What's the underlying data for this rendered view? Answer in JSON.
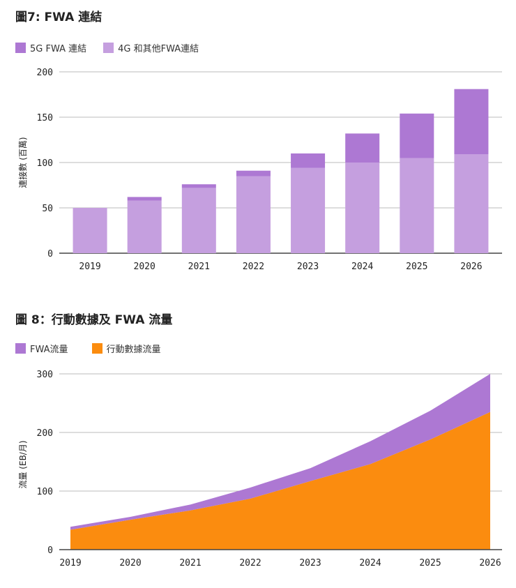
{
  "chart_data": [
    {
      "type": "bar",
      "stacked": true,
      "title": "圖7: FWA 連結",
      "categories": [
        "2019",
        "2020",
        "2021",
        "2022",
        "2023",
        "2024",
        "2025",
        "2026"
      ],
      "series": [
        {
          "name": "4G 和其他FWA連結",
          "values": [
            50,
            58,
            72,
            85,
            94,
            100,
            105,
            109
          ],
          "color": "#c59fdf"
        },
        {
          "name": "5G FWA 連結",
          "values": [
            0,
            4,
            4,
            6,
            16,
            32,
            49,
            72
          ],
          "color": "#ad78d3"
        }
      ],
      "ylabel": "連接數 (百萬)",
      "ylim": [
        0,
        200
      ],
      "yticks": [
        "0",
        "50",
        "100",
        "150",
        "200"
      ],
      "grid": true,
      "legend": "top-left"
    },
    {
      "type": "area",
      "stacked": true,
      "title": "圖 8：行動數據及 FWA 流量",
      "categories": [
        "2019",
        "2020",
        "2021",
        "2022",
        "2023",
        "2024",
        "2025",
        "2026"
      ],
      "series": [
        {
          "name": "行動數據流量",
          "values": [
            34,
            51,
            67,
            87,
            117,
            146,
            188,
            235
          ],
          "color": "#fb8c0f"
        },
        {
          "name": "FWA流量",
          "values": [
            5,
            5,
            10,
            19,
            22,
            39,
            49,
            65
          ],
          "color": "#ad78d3"
        }
      ],
      "ylabel": "流量 (EB/月)",
      "ylim": [
        0,
        300
      ],
      "yticks": [
        "0",
        "100",
        "200",
        "300"
      ],
      "grid": true,
      "legend": "top-left"
    }
  ]
}
